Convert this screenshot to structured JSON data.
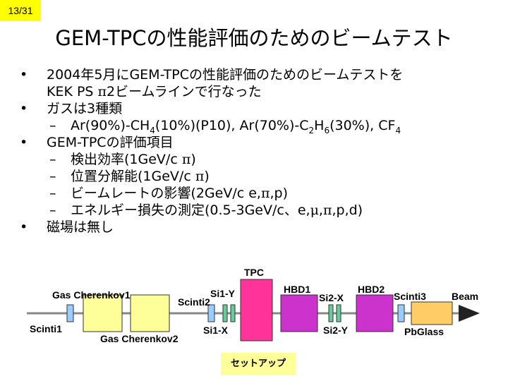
{
  "page_number": "13/31",
  "title": "GEM-TPCの性能評価のためのビームテスト",
  "bullet_mark": "•",
  "dash_mark": "–",
  "bullets": {
    "b1_line1": "2004年5月にGEM-TPCの性能評価のためのビームテストを",
    "b1_line2_a": "KEK PS ",
    "b1_line2_sym": "π",
    "b1_line2_b": "2ビームラインで行なった",
    "b2": "ガスは3種類",
    "b2_sub": {
      "s1": "Ar(90%)-CH",
      "s2": "4",
      "s3": "(10%)(P10), Ar(70%)-C",
      "s4": "2",
      "s5": "H",
      "s6": "6",
      "s7": "(30%), CF",
      "s8": "4"
    },
    "b3": "GEM-TPCの評価項目",
    "b3_items": {
      "i1_a": "検出効率(1GeV/c ",
      "i1_sym": "π",
      "i1_b": ")",
      "i2_a": "位置分解能(1GeV/c ",
      "i2_sym": "π",
      "i2_b": ")",
      "i3_a": "ビームレートの影響(2GeV/c e,",
      "i3_sym": "π",
      "i3_b": ",p)",
      "i4_a": "エネルギー損失の測定(0.5-3GeV/c、e,",
      "i4_sym1": "μ",
      "i4_mid": ",",
      "i4_sym2": "π",
      "i4_b": ",p,d)"
    },
    "b4": "磁場は無し"
  },
  "setup_labels": {
    "tpc": "TPC",
    "gas_cherenkov1": "Gas Cherenkov1",
    "gas_cherenkov2": "Gas Cherenkov2",
    "scinti1": "Scinti1",
    "scinti2": "Scinti2",
    "scinti3": "Scinti3",
    "si1_y": "Si1-Y",
    "si1_x": "Si1-X",
    "si2_x": "Si2-X",
    "si2_y": "Si2-Y",
    "hbd1": "HBD1",
    "hbd2": "HBD2",
    "pbglass": "PbGlass",
    "beam": "Beam"
  },
  "setup_button": "セットアップ",
  "colors": {
    "page_number_bg": "#ffff00",
    "cherenkov": "#ffff99",
    "scintillator": "#99ccff",
    "silicon": "#66cc99",
    "tpc": "#ff3399",
    "hbd": "#cc33cc",
    "pbglass": "#ffcc66",
    "beamline": "#888888",
    "setup_button_bg": "#ffff99"
  }
}
